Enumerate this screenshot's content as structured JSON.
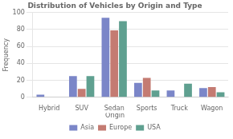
{
  "chart_data": {
    "type": "bar",
    "title": "Distribution of Vehicles by Origin and Type",
    "ylabel": "Frequency",
    "categories": [
      "Hybrid",
      "SUV",
      "Sedan",
      "Sports",
      "Truck",
      "Wagon"
    ],
    "series": [
      {
        "name": "Asia",
        "color": "#7b86c8",
        "values": [
          3,
          25,
          94,
          17,
          8,
          11
        ]
      },
      {
        "name": "Europe",
        "color": "#c47b72",
        "values": [
          0,
          10,
          79,
          23,
          0,
          12
        ]
      },
      {
        "name": "USA",
        "color": "#5fa090",
        "values": [
          0,
          25,
          90,
          8,
          16,
          6
        ]
      }
    ],
    "legend_title": "Origin",
    "legend": "bottom",
    "ylim": [
      0,
      100
    ],
    "yticks": [
      0,
      20,
      40,
      60,
      80,
      100
    ],
    "grid": true
  }
}
